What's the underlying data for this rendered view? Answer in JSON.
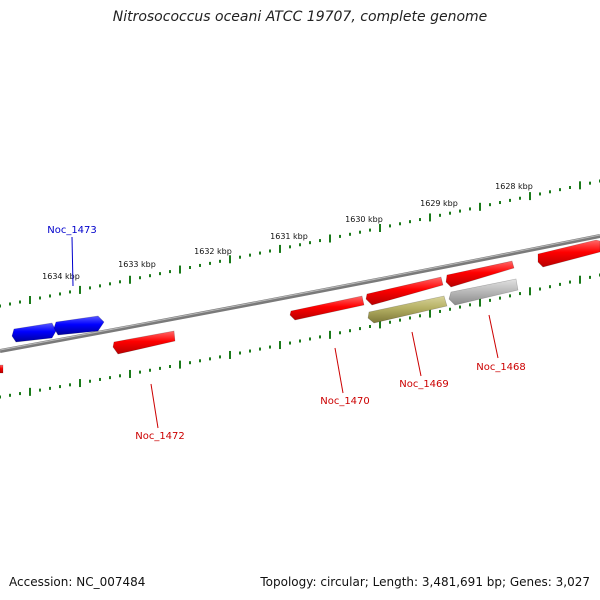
{
  "title": "Nitrosococcus oceani ATCC 19707, complete genome",
  "footer": {
    "accession": "Accession: NC_007484",
    "summary": "Topology: circular; Length: 3,481,691 bp; Genes: 3,027"
  },
  "colors": {
    "forward_gene": "#ff0000",
    "reverse_gene": "#0000ff",
    "other_gene": "#b5b064",
    "grey_gene": "#bbbbbb",
    "ruler_tick": "#1a7a1a",
    "backbone": "#7a7a7a",
    "forward_label": "#cc0000",
    "reverse_label": "#0000cc"
  },
  "ruler": [
    {
      "label": "1628 kbp"
    },
    {
      "label": "1629 kbp"
    },
    {
      "label": "1630 kbp"
    },
    {
      "label": "1631 kbp"
    },
    {
      "label": "1632 kbp"
    },
    {
      "label": "1633 kbp"
    },
    {
      "label": "1634 kbp"
    }
  ],
  "genes": [
    {
      "label": "Noc_1473"
    },
    {
      "label": "Noc_1472"
    },
    {
      "label": "Noc_1470"
    },
    {
      "label": "Noc_1469"
    },
    {
      "label": "Noc_1468"
    }
  ]
}
